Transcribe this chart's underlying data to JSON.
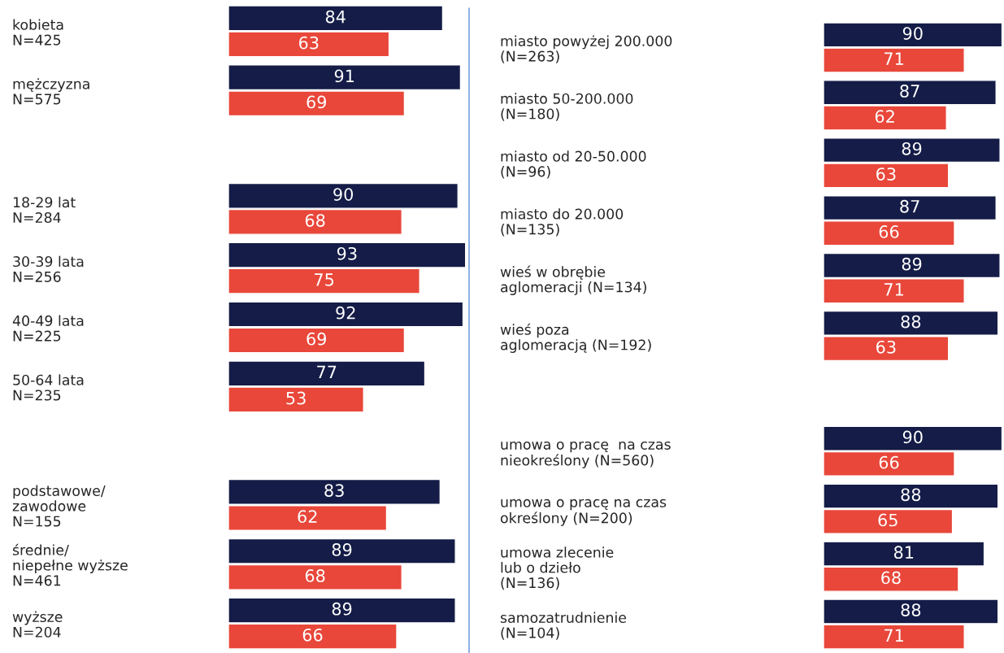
{
  "chart_data": [
    {
      "type": "bar",
      "orientation": "horizontal",
      "data_labels": true,
      "tick_labels": "y",
      "xlim": [
        0,
        95
      ],
      "categories": [
        "kobieta\nN=425",
        "mężczyzna\nN=575",
        null,
        "18-29 lat\nN=284",
        "30-39 lata\nN=256",
        "40-49 lata\nN=225",
        "50-64 lata\nN=235",
        null,
        "podstawowe/\nzawodowe\nN=155",
        "średnie/\nniepełne wyższe\nN=461",
        "wyższe\nN=204"
      ],
      "series": [
        {
          "color": "#141c47",
          "values": [
            84,
            91,
            null,
            90,
            93,
            92,
            77,
            null,
            83,
            89,
            89
          ]
        },
        {
          "color": "#e8473a",
          "values": [
            63,
            69,
            null,
            68,
            75,
            69,
            53,
            null,
            62,
            68,
            66
          ]
        }
      ]
    },
    {
      "type": "bar",
      "orientation": "horizontal",
      "data_labels": true,
      "tick_labels": "y",
      "xlim": [
        0,
        91
      ],
      "categories": [
        "miasto powyżej 200.000\n(N=263)",
        "miasto 50-200.000\n(N=180)",
        "miasto od 20-50.000\n(N=96)",
        "miasto do 20.000\n(N=135)",
        "wieś w obrębie\naglomeracji (N=134)",
        "wieś poza\naglomeracją (N=192)",
        null,
        "umowa o pracę  na czas\nnieokreślony (N=560)",
        "umowa o pracę na czas\nokreślony (N=200)",
        "umowa zlecenie\nlub o dzieło\n(N=136)",
        "samozatrudnienie\n(N=104)"
      ],
      "series": [
        {
          "color": "#141c47",
          "values": [
            90,
            87,
            89,
            87,
            89,
            88,
            null,
            90,
            88,
            81,
            88
          ]
        },
        {
          "color": "#e8473a",
          "values": [
            71,
            62,
            63,
            66,
            71,
            63,
            null,
            66,
            65,
            68,
            71
          ]
        }
      ]
    }
  ]
}
